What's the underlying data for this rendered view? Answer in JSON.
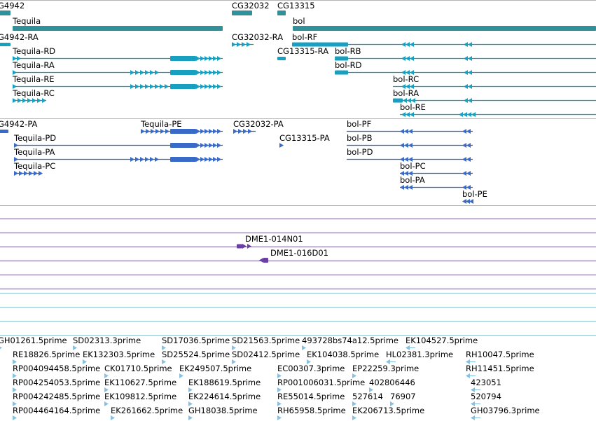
{
  "colors": {
    "gene": "#30919a",
    "transcript": "#18a0c0",
    "protein": "#3a6ac8",
    "clone": "#6a40a8",
    "est": "#8ac0e0",
    "clone_track_line": "#6e5a9e",
    "est_track_line": "#8ec3d0",
    "divider": "#b4b4b4"
  },
  "icons": {
    "forward_exon": "right-chevron-icon",
    "reverse_exon": "left-chevron-icon"
  },
  "tracks": {
    "genes": {
      "features": [
        {
          "label": "G4942"
        },
        {
          "label": "CG32032"
        },
        {
          "label": "CG13315"
        },
        {
          "label": "Tequila"
        },
        {
          "label": "bol"
        }
      ]
    },
    "transcripts": {
      "features": [
        {
          "label": "G4942-RA"
        },
        {
          "label": "CG32032-RA"
        },
        {
          "label": "bol-RF"
        },
        {
          "label": "Tequila-RD"
        },
        {
          "label": "CG13315-RA"
        },
        {
          "label": "bol-RB"
        },
        {
          "label": "Tequila-RA"
        },
        {
          "label": "bol-RD"
        },
        {
          "label": "Tequila-RE"
        },
        {
          "label": "bol-RC"
        },
        {
          "label": "Tequila-RC"
        },
        {
          "label": "bol-RA"
        },
        {
          "label": "bol-RE"
        }
      ]
    },
    "proteins": {
      "features": [
        {
          "label": "G4942-PA"
        },
        {
          "label": "Tequila-PE"
        },
        {
          "label": "CG32032-PA"
        },
        {
          "label": "bol-PF"
        },
        {
          "label": "Tequila-PD"
        },
        {
          "label": "CG13315-PA"
        },
        {
          "label": "bol-PB"
        },
        {
          "label": "Tequila-PA"
        },
        {
          "label": "bol-PD"
        },
        {
          "label": "Tequila-PC"
        },
        {
          "label": "bol-PC"
        },
        {
          "label": "bol-PA"
        },
        {
          "label": "bol-PE"
        }
      ]
    },
    "clones": {
      "features": [
        {
          "label": "DME1-014N01"
        },
        {
          "label": "DME1-016D01"
        }
      ]
    },
    "ests": {
      "features": [
        {
          "label": "GH01261.5prime"
        },
        {
          "label": "SD02313.3prime"
        },
        {
          "label": "SD17036.5prime"
        },
        {
          "label": "SD21563.5prime"
        },
        {
          "label": "493728bs74a12.5prime"
        },
        {
          "label": "EK104527.5prime"
        },
        {
          "label": "RE18826.5prime"
        },
        {
          "label": "EK132303.5prime"
        },
        {
          "label": "SD25524.5prime"
        },
        {
          "label": "SD02412.5prime"
        },
        {
          "label": "EK104038.5prime"
        },
        {
          "label": "HL02381.3prime"
        },
        {
          "label": "RH10047.5prime"
        },
        {
          "label": "RP004094458.5prime"
        },
        {
          "label": "CK01710.5prime"
        },
        {
          "label": "EK249507.5prime"
        },
        {
          "label": "EC00307.3prime"
        },
        {
          "label": "EP22259.3prime"
        },
        {
          "label": "RH11451.5prime"
        },
        {
          "label": "RP004254053.5prime"
        },
        {
          "label": "EK110627.5prime"
        },
        {
          "label": "EK188619.5prime"
        },
        {
          "label": "RP001006031.5prime"
        },
        {
          "label": "402806446"
        },
        {
          "label": "423051"
        },
        {
          "label": "RP004242485.5prime"
        },
        {
          "label": "EK109812.5prime"
        },
        {
          "label": "EK224614.5prime"
        },
        {
          "label": "RE55014.5prime"
        },
        {
          "label": "527614"
        },
        {
          "label": "76907"
        },
        {
          "label": "520794"
        },
        {
          "label": "RP004464164.5prime"
        },
        {
          "label": "EK261662.5prime"
        },
        {
          "label": "GH18038.5prime"
        },
        {
          "label": "RH65958.5prime"
        },
        {
          "label": "EK206713.5prime"
        },
        {
          "label": "GH03796.3prime"
        }
      ]
    }
  }
}
